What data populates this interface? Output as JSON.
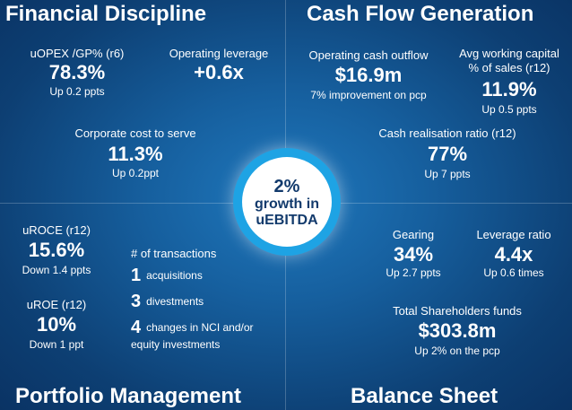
{
  "quadrants": {
    "financial": {
      "title": "Financial Discipline",
      "metrics": [
        {
          "label": "uOPEX /GP% (r6)",
          "value": "78.3%",
          "sub": "Up  0.2 ppts"
        },
        {
          "label": "Operating leverage",
          "value": "+0.6x"
        },
        {
          "label": "Corporate cost to serve",
          "value": "11.3%",
          "sub": "Up 0.2ppt"
        }
      ]
    },
    "cashflow": {
      "title": "Cash Flow Generation",
      "metrics": [
        {
          "label": "Operating cash outflow",
          "value": "$16.9m",
          "sub": "7% improvement on pcp"
        },
        {
          "label_line1": "Avg working capital",
          "label_line2": "% of sales (r12)",
          "value": "11.9%",
          "sub": "Up 0.5 ppts"
        },
        {
          "label": "Cash realisation ratio (r12)",
          "value": "77%",
          "sub": "Up 7 ppts"
        }
      ]
    },
    "portfolio": {
      "title": "Portfolio Management",
      "metrics": [
        {
          "label": "uROCE (r12)",
          "value": "15.6%",
          "sub": "Down 1.4 ppts"
        },
        {
          "label": "uROE (r12)",
          "value": "10%",
          "sub": "Down 1 ppt"
        }
      ],
      "transactions": {
        "heading": "# of transactions",
        "items": [
          {
            "count": "1",
            "text": "acquisitions"
          },
          {
            "count": "3",
            "text": "divestments"
          },
          {
            "count": "4",
            "text": "changes in NCI and/or",
            "text2": "equity investments"
          }
        ]
      }
    },
    "balance": {
      "title": "Balance Sheet",
      "metrics": [
        {
          "label": "Gearing",
          "value": "34%",
          "sub": "Up 2.7 ppts"
        },
        {
          "label": "Leverage ratio",
          "value": "4.4x",
          "sub": "Up 0.6 times"
        },
        {
          "label": "Total Shareholders funds",
          "value": "$303.8m",
          "sub": "Up 2% on the pcp"
        }
      ]
    }
  },
  "center": {
    "value": "2%",
    "line1": "growth in",
    "line2": "uEBITDA"
  },
  "colors": {
    "background": "#165f9e",
    "circle_ring": "#1ea3e4",
    "circle_text": "#123a6c"
  }
}
